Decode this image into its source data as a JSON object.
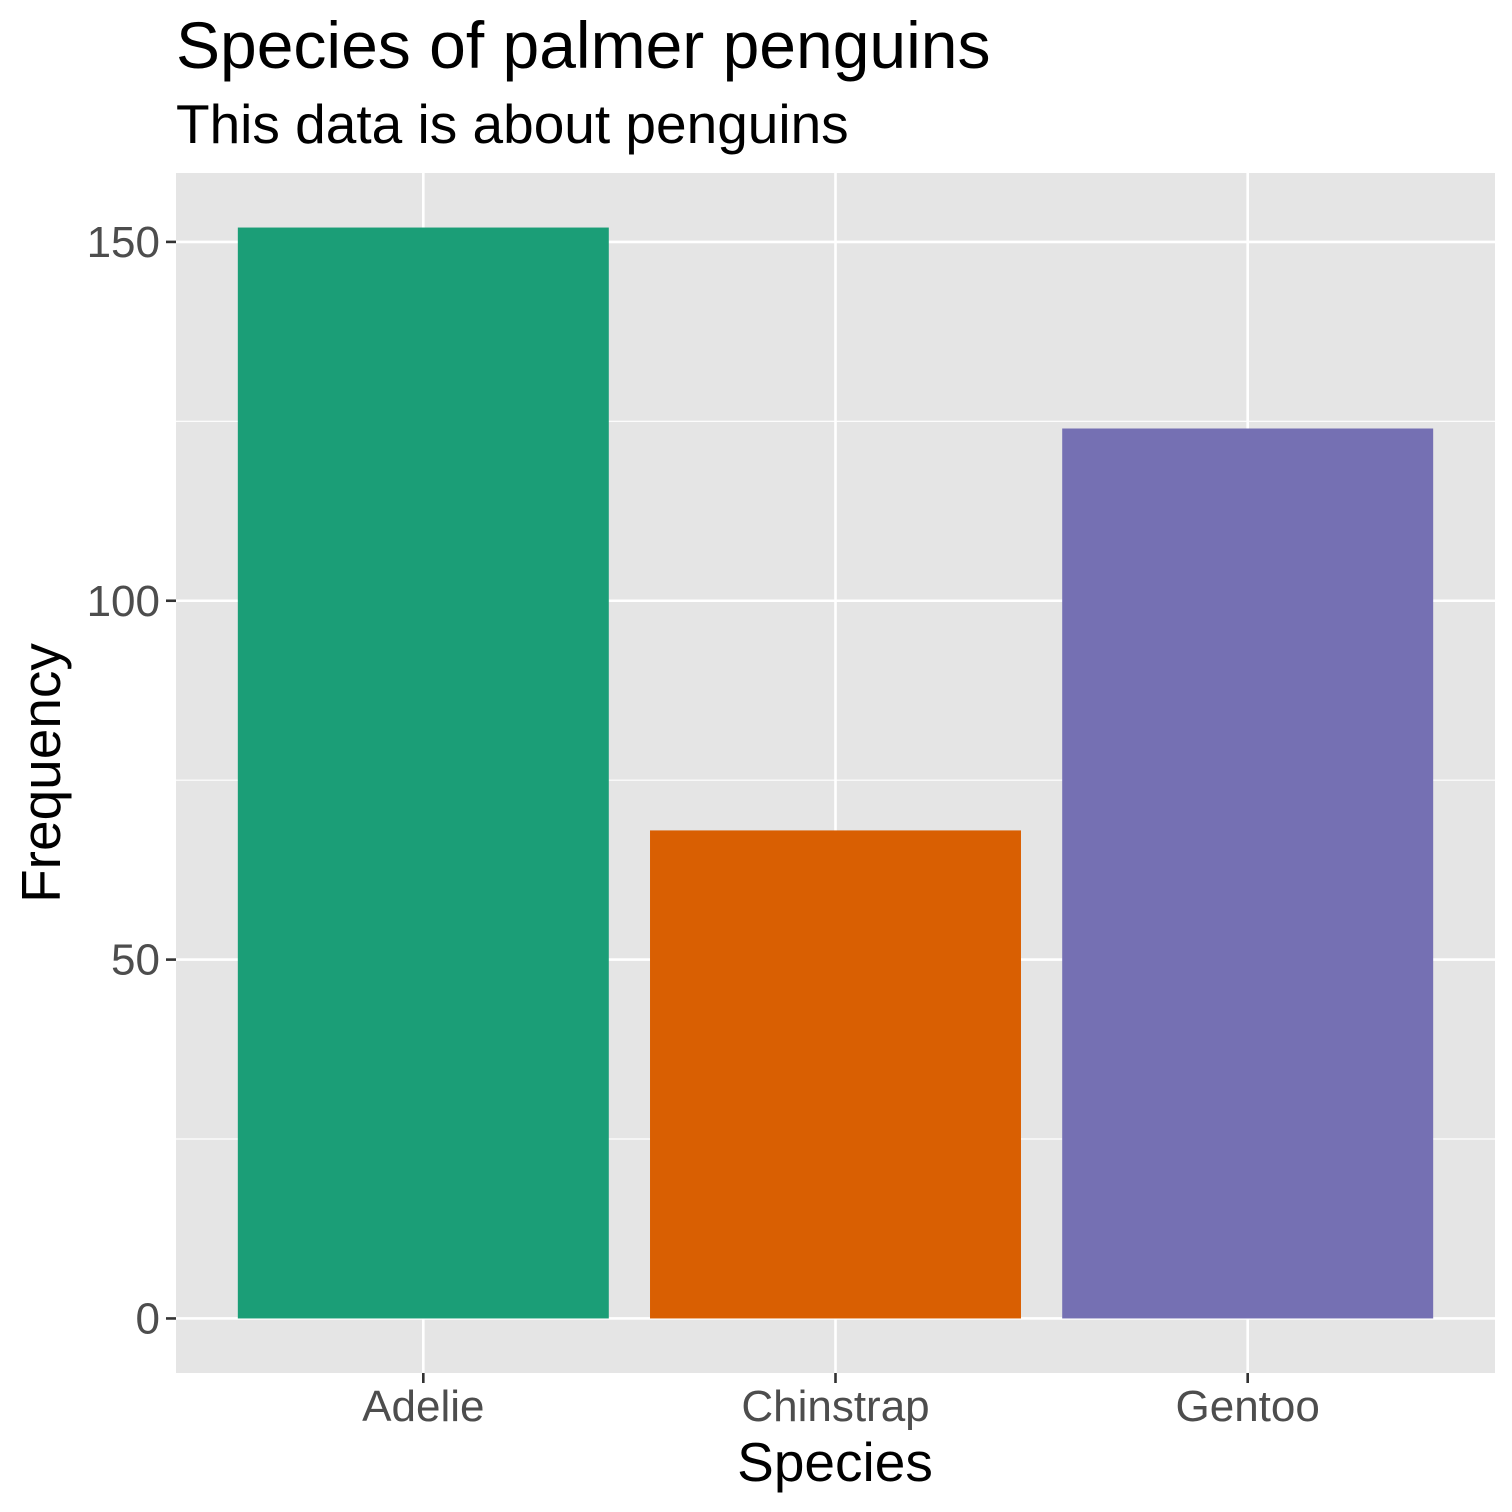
{
  "chart_data": {
    "type": "bar",
    "title": "Species of palmer penguins",
    "subtitle": "This data is about penguins",
    "xlabel": "Species",
    "ylabel": "Frequency",
    "categories": [
      "Adelie",
      "Chinstrap",
      "Gentoo"
    ],
    "values": [
      152,
      68,
      124
    ],
    "colors": [
      "#1B9E77",
      "#D95F02",
      "#7570B3"
    ],
    "ylim": [
      -7.6,
      159.6
    ],
    "yticks": [
      0,
      50,
      100,
      150
    ],
    "grid": true,
    "legend": "none",
    "panel_background": "#E5E5E5"
  }
}
